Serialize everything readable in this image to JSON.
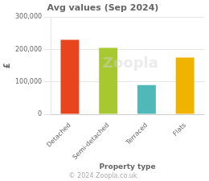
{
  "chart_data": {
    "type": "bar",
    "title": "Avg values (Sep 2024)",
    "categories": [
      "Detached",
      "Semi-detached",
      "Terraced",
      "Flats"
    ],
    "values": [
      230000,
      205000,
      90000,
      175000
    ],
    "colors": [
      "#e8451e",
      "#a8c832",
      "#50b8b8",
      "#f0b400"
    ],
    "xlabel": "Property type",
    "ylabel": "£",
    "ylim": [
      0,
      300000
    ],
    "yticks": [
      0,
      {
        "value": 100000,
        "label": "100,000"
      },
      {
        "value": 200000,
        "label": "200,000"
      },
      {
        "value": 300000,
        "label": "300,000"
      }
    ],
    "grid": true,
    "annotations": [
      "Zoopla",
      "© 2024 Zoopla.co.uk"
    ]
  }
}
